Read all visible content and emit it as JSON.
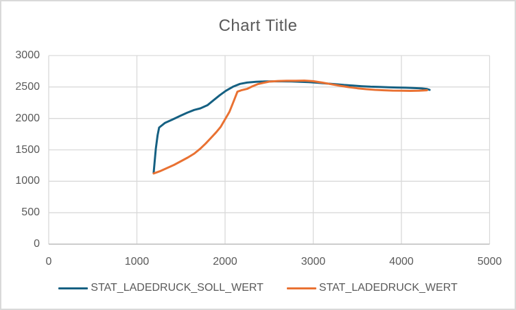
{
  "chart_data": {
    "type": "line",
    "title": "Chart Title",
    "xlabel": "",
    "ylabel": "",
    "xlim": [
      0,
      5000
    ],
    "ylim": [
      0,
      3000
    ],
    "x_ticks": [
      0,
      1000,
      2000,
      3000,
      4000,
      5000
    ],
    "y_ticks": [
      0,
      500,
      1000,
      1500,
      2000,
      2500,
      3000
    ],
    "grid": true,
    "legend_position": "bottom",
    "series": [
      {
        "name": "STAT_LADEDRUCK_SOLL_WERT",
        "color": "#156082",
        "points": [
          [
            1190,
            1130
          ],
          [
            1200,
            1290
          ],
          [
            1215,
            1520
          ],
          [
            1235,
            1735
          ],
          [
            1252,
            1855
          ],
          [
            1320,
            1930
          ],
          [
            1400,
            1980
          ],
          [
            1490,
            2040
          ],
          [
            1570,
            2090
          ],
          [
            1650,
            2135
          ],
          [
            1720,
            2160
          ],
          [
            1800,
            2210
          ],
          [
            1870,
            2290
          ],
          [
            1940,
            2370
          ],
          [
            2010,
            2440
          ],
          [
            2090,
            2505
          ],
          [
            2170,
            2550
          ],
          [
            2250,
            2570
          ],
          [
            2350,
            2583
          ],
          [
            2450,
            2588
          ],
          [
            2550,
            2590
          ],
          [
            2650,
            2590
          ],
          [
            2750,
            2588
          ],
          [
            2850,
            2583
          ],
          [
            2950,
            2578
          ],
          [
            3050,
            2568
          ],
          [
            3150,
            2555
          ],
          [
            3250,
            2545
          ],
          [
            3350,
            2532
          ],
          [
            3450,
            2522
          ],
          [
            3550,
            2512
          ],
          [
            3650,
            2505
          ],
          [
            3750,
            2500
          ],
          [
            3850,
            2495
          ],
          [
            3950,
            2492
          ],
          [
            4050,
            2488
          ],
          [
            4150,
            2483
          ],
          [
            4230,
            2478
          ],
          [
            4290,
            2468
          ],
          [
            4320,
            2455
          ]
        ]
      },
      {
        "name": "STAT_LADEDRUCK_WERT",
        "color": "#E97132",
        "points": [
          [
            1190,
            1125
          ],
          [
            1260,
            1160
          ],
          [
            1340,
            1210
          ],
          [
            1420,
            1260
          ],
          [
            1500,
            1320
          ],
          [
            1580,
            1380
          ],
          [
            1650,
            1440
          ],
          [
            1720,
            1520
          ],
          [
            1780,
            1600
          ],
          [
            1840,
            1690
          ],
          [
            1900,
            1780
          ],
          [
            1950,
            1865
          ],
          [
            2000,
            1985
          ],
          [
            2050,
            2105
          ],
          [
            2100,
            2280
          ],
          [
            2140,
            2425
          ],
          [
            2190,
            2450
          ],
          [
            2250,
            2470
          ],
          [
            2310,
            2510
          ],
          [
            2370,
            2545
          ],
          [
            2430,
            2565
          ],
          [
            2500,
            2585
          ],
          [
            2600,
            2595
          ],
          [
            2700,
            2600
          ],
          [
            2800,
            2600
          ],
          [
            2900,
            2602
          ],
          [
            3000,
            2592
          ],
          [
            3100,
            2570
          ],
          [
            3200,
            2545
          ],
          [
            3300,
            2520
          ],
          [
            3400,
            2498
          ],
          [
            3500,
            2480
          ],
          [
            3600,
            2465
          ],
          [
            3700,
            2455
          ],
          [
            3800,
            2448
          ],
          [
            3900,
            2443
          ],
          [
            4000,
            2440
          ],
          [
            4100,
            2438
          ],
          [
            4200,
            2440
          ],
          [
            4290,
            2448
          ]
        ]
      }
    ]
  },
  "colors": {
    "title_text": "#595959",
    "tick_text": "#595959",
    "gridline": "#D9D9D9",
    "axis_line": "#BFBFBF",
    "chart_border": "#D9D9D9",
    "background": "#FFFFFF"
  }
}
